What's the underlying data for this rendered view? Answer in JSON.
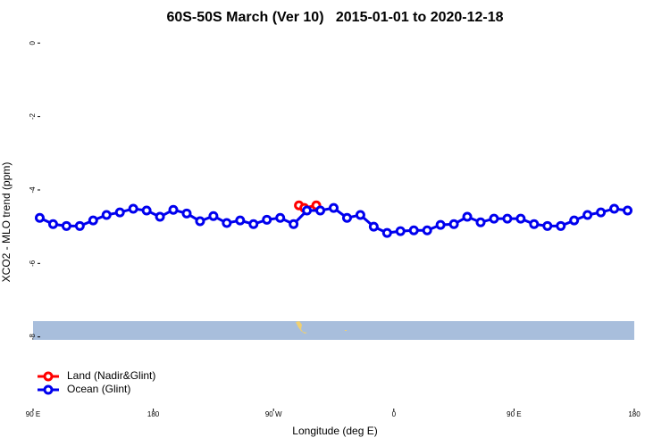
{
  "chart_data": {
    "type": "line",
    "title": "60S-50S March (Ver 10)   2015-01-01 to 2020-12-18",
    "x_label": "Longitude (deg E)",
    "y_label": "XCO2 - MLO trend (ppm)",
    "xlim": [
      90,
      540
    ],
    "ylim": [
      -9.95,
      0.2
    ],
    "xticks": [
      {
        "value": 90,
        "label": "90 E"
      },
      180,
      {
        "value": 270,
        "label": "90 W"
      },
      {
        "value": 360,
        "label": "0"
      },
      {
        "value": 450,
        "label": "90 E"
      },
      {
        "value": 540,
        "label": "180"
      }
    ],
    "yticks": [
      0,
      -2,
      -4,
      -6,
      -8
    ],
    "legend": "bottom-left",
    "series": [
      {
        "name": "Land (Nadir&Glint)",
        "color": "#ff0000",
        "x": [
          289,
          293,
          302
        ],
        "values": [
          -4.42,
          -4.49,
          -4.42
        ]
      },
      {
        "name": "Ocean (Glint)",
        "color": "#0000ee",
        "x": [
          95,
          105,
          115,
          125,
          135,
          145,
          155,
          165,
          175,
          185,
          195,
          205,
          215,
          225,
          235,
          245,
          255,
          265,
          275,
          285,
          295,
          305,
          315,
          325,
          335,
          345,
          355,
          365,
          375,
          385,
          395,
          405,
          415,
          425,
          435,
          445,
          455,
          465,
          475,
          485,
          495,
          505,
          515,
          525,
          535
        ],
        "values": [
          -4.76,
          -4.93,
          -4.98,
          -4.98,
          -4.83,
          -4.68,
          -4.61,
          -4.51,
          -4.56,
          -4.73,
          -4.54,
          -4.64,
          -4.85,
          -4.71,
          -4.9,
          -4.83,
          -4.93,
          -4.81,
          -4.76,
          -4.93,
          -4.56,
          -4.56,
          -4.49,
          -4.76,
          -4.68,
          -5.0,
          -5.17,
          -5.12,
          -5.1,
          -5.1,
          -4.95,
          -4.93,
          -4.73,
          -4.88,
          -4.78,
          -4.78,
          -4.78,
          -4.93,
          -4.98,
          -4.98,
          -4.83,
          -4.68,
          -4.61,
          -4.51,
          -4.56
        ]
      }
    ]
  }
}
